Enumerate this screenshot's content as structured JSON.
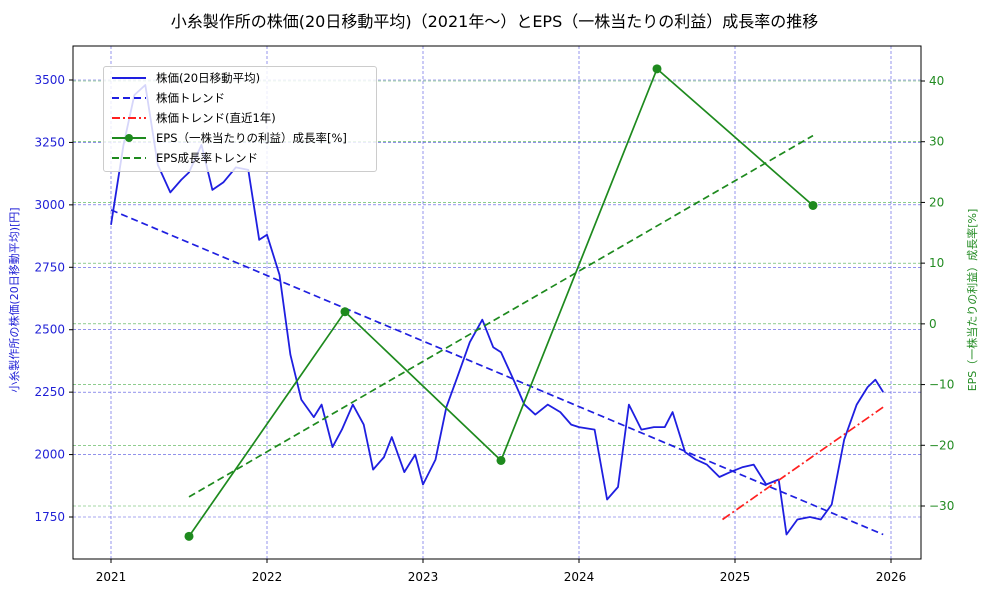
{
  "title": "小糸製作所の株価(20日移動平均)（2021年〜）とEPS（一株当たりの利益）成長率の推移",
  "axes": {
    "left_label": "小糸製作所の株価(20日移動平均)[円]",
    "right_label": "EPS（一株当たりの利益）成長率[%]",
    "x_ticks": [
      "2021",
      "2022",
      "2023",
      "2024",
      "2025",
      "2026"
    ],
    "left_ticks": [
      "3500",
      "3250",
      "3000",
      "2750",
      "2500",
      "2250",
      "2000",
      "1750"
    ],
    "right_ticks": [
      "40",
      "30",
      "20",
      "10",
      "0",
      "−10",
      "−20",
      "−30"
    ]
  },
  "legend": {
    "items": [
      {
        "label": "株価(20日移動平均)"
      },
      {
        "label": "株価トレンド"
      },
      {
        "label": "株価トレンド(直近1年)"
      },
      {
        "label": "EPS（一株当たりの利益）成長率[%]"
      },
      {
        "label": "EPS成長率トレンド"
      }
    ]
  },
  "colors": {
    "price": "#1f1fe0",
    "price_trend": "#1f1fe0",
    "recent_trend": "#ff2020",
    "eps": "#1e8a1e",
    "eps_trend": "#1e8a1e",
    "left_axis": "#1f1fd6",
    "right_axis": "#228b22"
  },
  "chart_data": {
    "type": "line",
    "title": "小糸製作所の株価(20日移動平均)（2021年〜）とEPS（一株当たりの利益）成長率の推移",
    "xlabel": "",
    "ylabel": "小糸製作所の株価(20日移動平均)[円]",
    "ylabel_right": "EPS（一株当たりの利益）成長率[%]",
    "xlim": [
      2020.76,
      2026.2
    ],
    "ylim": [
      1565,
      3635
    ],
    "ylim_right": [
      -45,
      46
    ],
    "grid": true,
    "legend_position": "upper left",
    "series": [
      {
        "name": "株価(20日移動平均)",
        "axis": "left",
        "style": "solid",
        "x": [
          2021.0,
          2021.08,
          2021.15,
          2021.22,
          2021.3,
          2021.38,
          2021.45,
          2021.5,
          2021.58,
          2021.65,
          2021.72,
          2021.8,
          2021.88,
          2021.95,
          2022.0,
          2022.08,
          2022.15,
          2022.22,
          2022.3,
          2022.35,
          2022.42,
          2022.48,
          2022.55,
          2022.62,
          2022.68,
          2022.75,
          2022.8,
          2022.88,
          2022.95,
          2023.0,
          2023.08,
          2023.15,
          2023.22,
          2023.3,
          2023.38,
          2023.45,
          2023.5,
          2023.58,
          2023.65,
          2023.72,
          2023.8,
          2023.88,
          2023.95,
          2024.0,
          2024.1,
          2024.18,
          2024.25,
          2024.32,
          2024.4,
          2024.48,
          2024.55,
          2024.6,
          2024.68,
          2024.75,
          2024.82,
          2024.9,
          2024.97,
          2025.05,
          2025.12,
          2025.2,
          2025.28,
          2025.33,
          2025.4,
          2025.48,
          2025.55,
          2025.62,
          2025.7,
          2025.78,
          2025.85,
          2025.9,
          2025.95
        ],
        "y": [
          2920,
          3240,
          3440,
          3480,
          3160,
          3050,
          3100,
          3130,
          3240,
          3060,
          3090,
          3150,
          3140,
          2860,
          2880,
          2720,
          2400,
          2220,
          2150,
          2200,
          2030,
          2100,
          2200,
          2120,
          1940,
          1990,
          2070,
          1930,
          2000,
          1880,
          1980,
          2190,
          2310,
          2450,
          2540,
          2430,
          2410,
          2300,
          2200,
          2160,
          2200,
          2170,
          2120,
          2110,
          2100,
          1820,
          1870,
          2200,
          2100,
          2110,
          2110,
          2170,
          2010,
          1980,
          1960,
          1910,
          1930,
          1950,
          1960,
          1880,
          1900,
          1680,
          1740,
          1750,
          1740,
          1800,
          2060,
          2200,
          2270,
          2300,
          2250
        ]
      },
      {
        "name": "株価トレンド",
        "axis": "left",
        "style": "dashed",
        "x": [
          2021.0,
          2025.95
        ],
        "y": [
          2980,
          1680
        ]
      },
      {
        "name": "株価トレンド(直近1年)",
        "axis": "left",
        "style": "dashdot",
        "x": [
          2024.92,
          2025.95
        ],
        "y": [
          1740,
          2190
        ]
      },
      {
        "name": "EPS（一株当たりの利益）成長率[%]",
        "axis": "right",
        "style": "solid-marker",
        "x": [
          2021.5,
          2022.5,
          2023.5,
          2024.5,
          2025.5
        ],
        "y": [
          -35,
          2,
          -22.5,
          42,
          19.5
        ]
      },
      {
        "name": "EPS成長率トレンド",
        "axis": "right",
        "style": "dashed",
        "x": [
          2021.5,
          2025.5
        ],
        "y": [
          -28.5,
          31
        ]
      }
    ]
  }
}
